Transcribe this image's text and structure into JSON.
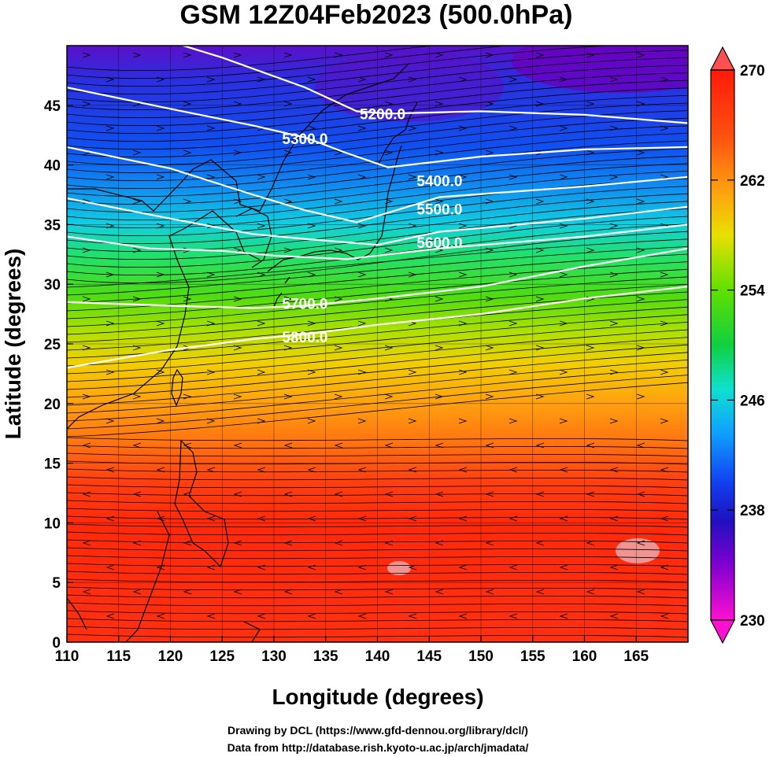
{
  "title": "GSM 12Z04Feb2023 (500.0hPa)",
  "x_axis": {
    "label": "Longitude (degrees)",
    "range": [
      110,
      170
    ],
    "ticks": [
      110,
      115,
      120,
      125,
      130,
      135,
      140,
      145,
      150,
      155,
      160,
      165
    ]
  },
  "y_axis": {
    "label": "Latitude  (degrees)",
    "range": [
      0,
      50
    ],
    "ticks": [
      0,
      5,
      10,
      15,
      20,
      25,
      30,
      35,
      40,
      45
    ]
  },
  "colorbar": {
    "range": [
      230,
      270
    ],
    "ticks": [
      230,
      238,
      246,
      254,
      262,
      270
    ],
    "colormap": [
      "#ff00c8",
      "#8000d0",
      "#2020ff",
      "#00a0ff",
      "#00e0d0",
      "#20e020",
      "#80e000",
      "#e0e000",
      "#ffa000",
      "#ff4000",
      "#ff1000"
    ]
  },
  "contours": [
    {
      "label": "5200.0",
      "label_at": [
        140.5,
        44.3
      ],
      "line": [
        [
          110,
          53
        ],
        [
          125,
          49
        ],
        [
          133,
          46.5
        ],
        [
          138,
          44.5
        ],
        [
          141,
          44.3
        ],
        [
          150,
          44.5
        ],
        [
          160,
          44.2
        ],
        [
          170,
          43.5
        ]
      ]
    },
    {
      "label": "5300.0",
      "label_at": [
        133,
        42.2
      ],
      "line": [
        [
          110,
          46.5
        ],
        [
          120,
          44.7
        ],
        [
          128,
          43.3
        ],
        [
          133,
          42.3
        ],
        [
          137,
          41
        ],
        [
          141,
          39.8
        ],
        [
          150,
          40.7
        ],
        [
          160,
          41.3
        ],
        [
          170,
          41.5
        ]
      ]
    },
    {
      "label": "5400.0",
      "label_at": [
        146,
        38.7
      ],
      "line": [
        [
          110,
          41.5
        ],
        [
          120,
          39.7
        ],
        [
          128,
          37.5
        ],
        [
          133,
          36.2
        ],
        [
          138,
          35.2
        ],
        [
          146,
          37.3
        ],
        [
          160,
          38.2
        ],
        [
          170,
          39
        ]
      ]
    },
    {
      "label": "5500.0",
      "label_at": [
        146,
        36.3
      ],
      "line": [
        [
          110,
          37.2
        ],
        [
          120,
          35.5
        ],
        [
          128,
          34.2
        ],
        [
          133,
          33.8
        ],
        [
          140,
          33.3
        ],
        [
          146,
          34.4
        ],
        [
          160,
          35.5
        ],
        [
          170,
          36.5
        ]
      ]
    },
    {
      "label": "5600.0",
      "label_at": [
        146,
        33.5
      ],
      "line": [
        [
          110,
          34
        ],
        [
          118,
          33
        ],
        [
          125,
          32.8
        ],
        [
          130,
          32.4
        ],
        [
          137,
          32.1
        ],
        [
          146,
          33
        ],
        [
          160,
          34
        ],
        [
          170,
          35
        ]
      ]
    },
    {
      "label": "5700.0",
      "label_at": [
        133,
        28.4
      ],
      "line": [
        [
          110,
          28.5
        ],
        [
          120,
          28.2
        ],
        [
          128,
          28
        ],
        [
          133,
          28.2
        ],
        [
          140,
          28.8
        ],
        [
          150,
          29.8
        ],
        [
          160,
          31.5
        ],
        [
          170,
          33
        ]
      ]
    },
    {
      "label": "5800.0",
      "label_at": [
        133,
        25.6
      ],
      "line": [
        [
          110,
          23
        ],
        [
          120,
          24.5
        ],
        [
          128,
          25.4
        ],
        [
          133,
          25.8
        ],
        [
          140,
          26.6
        ],
        [
          150,
          27.5
        ],
        [
          160,
          28.8
        ],
        [
          170,
          29.8
        ]
      ]
    }
  ],
  "credits": {
    "line1": "Drawing by DCL (https://www.gfd-dennou.org/library/dcl/)",
    "line2": "Data from http://database.rish.kyoto-u.ac.jp/arch/jmadata/"
  }
}
